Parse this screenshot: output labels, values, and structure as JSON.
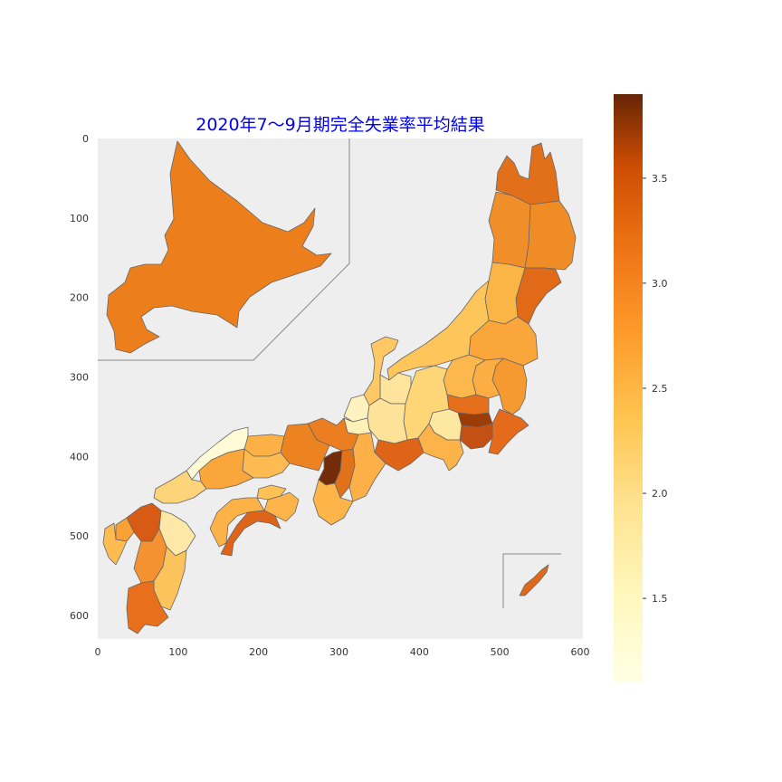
{
  "title": "2020年7～9月期完全失業率平均結果",
  "chart_data": {
    "type": "choropleth",
    "title": "2020年7～9月期完全失業率平均結果",
    "xlabel": "",
    "ylabel": "",
    "xlim": [
      0,
      600
    ],
    "ylim": [
      620,
      0
    ],
    "x_ticks": [
      "0",
      "100",
      "200",
      "300",
      "400",
      "500",
      "600"
    ],
    "y_ticks": [
      "0",
      "100",
      "200",
      "300",
      "400",
      "500",
      "600"
    ],
    "colorbar": {
      "colormap": "YlOrBr",
      "range": [
        1.1,
        3.9
      ],
      "ticks": [
        "1.5",
        "2.0",
        "2.5",
        "3.0",
        "3.5"
      ]
    },
    "background_color": "#eeeeee",
    "grid": false
  }
}
